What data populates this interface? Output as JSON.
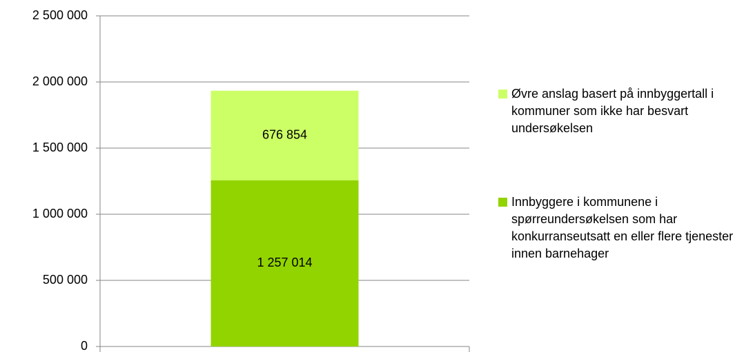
{
  "chart_data": {
    "type": "stacked-bar",
    "categories": [
      null
    ],
    "series": [
      {
        "name": "Innbyggere i kommunene i spørreundersøkelsen som har konkurranseutsatt en eller flere tjenester innen barnehager",
        "color": "#92d400",
        "values": [
          1257014
        ],
        "value_labels": [
          "1 257 014"
        ]
      },
      {
        "name": "Øvre anslag basert på innbyggertall i kommuner som ikke har besvart undersøkelsen",
        "color": "#ccff66",
        "values": [
          676854
        ],
        "value_labels": [
          "676 854"
        ]
      }
    ],
    "ylim": [
      0,
      2500000
    ],
    "yticks": [
      0,
      {
        "value": 500000,
        "label": "500 000"
      },
      {
        "value": 1000000,
        "label": "1 000 000"
      },
      {
        "value": 1500000,
        "label": "1 500 000"
      },
      {
        "value": 2000000,
        "label": "2 000 000"
      },
      {
        "value": 2500000,
        "label": "2 500 000"
      }
    ],
    "grid": true,
    "legend": "right"
  }
}
